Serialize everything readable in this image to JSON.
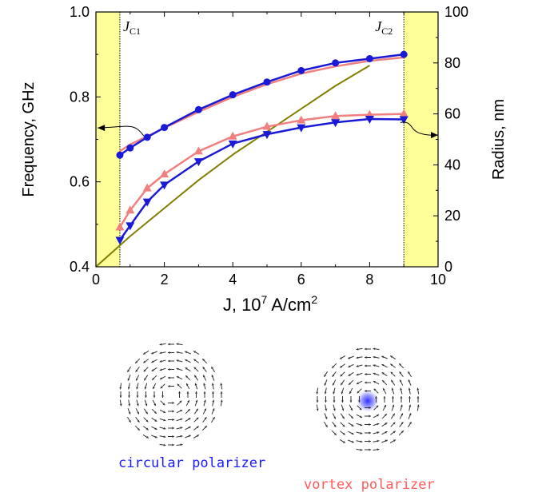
{
  "chart_data": {
    "type": "line",
    "title": "",
    "xlabel": "J, 10",
    "xlabel_exp": "7",
    "xlabel_unit": " A/cm",
    "xlabel_unit_exp": "2",
    "xlim": [
      0,
      10
    ],
    "xticks": [
      0,
      2,
      4,
      6,
      8,
      10
    ],
    "ylabel_left": "Frequency, GHz",
    "ylim_left": [
      0.4,
      1.0
    ],
    "yticks_left": [
      0.4,
      0.6,
      0.8,
      1.0
    ],
    "ylabel_right": "Radius, nm",
    "ylim_right": [
      0,
      100
    ],
    "yticks_right": [
      0,
      20,
      40,
      60,
      80,
      100
    ],
    "shaded_regions": [
      [
        0,
        0.7
      ],
      [
        9,
        10
      ]
    ],
    "shade_color": "#ffff99",
    "annotations": [
      {
        "name": "J",
        "sub": "C1",
        "x": 0.7
      },
      {
        "name": "J",
        "sub": "C2",
        "x": 9
      }
    ],
    "series": [
      {
        "key": "circ_freq_sim",
        "color": "#f08080",
        "marker": "none",
        "axis": "left",
        "x": [
          0.7,
          1,
          1.5,
          2,
          3,
          4,
          5,
          6,
          7,
          8,
          9
        ],
        "y": [
          0.672,
          0.688,
          0.707,
          0.727,
          0.765,
          0.8,
          0.83,
          0.855,
          0.872,
          0.885,
          0.893
        ]
      },
      {
        "key": "circ_freq",
        "color": "#1a1ad6",
        "marker": "circle",
        "axis": "left",
        "x": [
          0.7,
          1,
          1.5,
          2,
          3,
          4,
          5,
          6,
          7,
          8,
          9
        ],
        "y": [
          0.663,
          0.68,
          0.705,
          0.728,
          0.77,
          0.805,
          0.835,
          0.862,
          0.88,
          0.89,
          0.9
        ]
      },
      {
        "key": "vortex_freq",
        "color": "#f08080",
        "marker": "triangle-up",
        "axis": "left",
        "x": [
          0.7,
          1,
          1.5,
          2,
          3,
          4,
          5,
          6,
          7,
          8,
          9
        ],
        "y": [
          0.493,
          0.533,
          0.585,
          0.618,
          0.672,
          0.707,
          0.73,
          0.745,
          0.755,
          0.758,
          0.76
        ]
      },
      {
        "key": "circ_freq_low",
        "color": "#1a1ad6",
        "marker": "triangle-down",
        "axis": "left",
        "x": [
          0.7,
          1,
          1.5,
          2,
          3,
          4,
          5,
          6,
          7,
          8,
          9
        ],
        "y": [
          0.463,
          0.497,
          0.553,
          0.593,
          0.648,
          0.69,
          0.712,
          0.728,
          0.74,
          0.748,
          0.747
        ]
      },
      {
        "key": "radius",
        "color": "#808000",
        "marker": "none",
        "axis": "right",
        "x": [
          0,
          1,
          2,
          3,
          4,
          5,
          6,
          7,
          8
        ],
        "y": [
          0,
          12,
          23,
          34,
          44,
          53,
          62,
          71,
          79
        ]
      }
    ]
  },
  "captions": {
    "circular": "circular polarizer",
    "vortex": "vortex polarizer"
  },
  "colors": {
    "circular_caption": "#1a1aff",
    "vortex_caption": "#ff5a5a",
    "vortex_core": "#3333ff",
    "arrows": "#333333"
  }
}
